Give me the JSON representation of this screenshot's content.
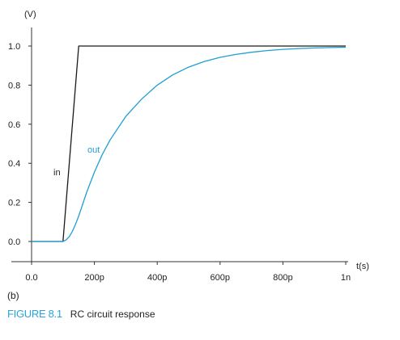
{
  "chart_data": {
    "type": "line",
    "y_unit": "(V)",
    "x_unit": "t(s)",
    "x_ticks": [
      {
        "value": 0,
        "label": "0.0"
      },
      {
        "value": 200,
        "label": "200p"
      },
      {
        "value": 400,
        "label": "400p"
      },
      {
        "value": 600,
        "label": "600p"
      },
      {
        "value": 800,
        "label": "800p"
      },
      {
        "value": 1000,
        "label": "1n"
      }
    ],
    "y_ticks": [
      {
        "value": 0.0,
        "label": "0.0"
      },
      {
        "value": 0.2,
        "label": "0.2"
      },
      {
        "value": 0.4,
        "label": "0.4"
      },
      {
        "value": 0.6,
        "label": "0.6"
      },
      {
        "value": 0.8,
        "label": "0.8"
      },
      {
        "value": 1.0,
        "label": "1.0"
      }
    ],
    "xlim": [
      0,
      1000
    ],
    "ylim": [
      0,
      1.0
    ],
    "grid": false,
    "series": [
      {
        "name": "in",
        "color": "#1a1a1a",
        "x": [
          0,
          100,
          150,
          1000
        ],
        "y": [
          0,
          0,
          1.0,
          1.0
        ]
      },
      {
        "name": "out",
        "color": "#1f9fd3",
        "x": [
          0,
          100,
          110,
          120,
          130,
          140,
          150,
          160,
          175,
          200,
          225,
          250,
          300,
          350,
          400,
          450,
          500,
          550,
          600,
          650,
          700,
          750,
          800,
          850,
          900,
          950,
          1000
        ],
        "y": [
          0,
          0,
          0.008,
          0.025,
          0.052,
          0.088,
          0.13,
          0.178,
          0.25,
          0.355,
          0.445,
          0.52,
          0.64,
          0.728,
          0.8,
          0.853,
          0.892,
          0.921,
          0.942,
          0.957,
          0.968,
          0.977,
          0.983,
          0.987,
          0.99,
          0.992,
          0.994
        ]
      }
    ]
  },
  "panel_label": "(b)",
  "caption": {
    "figure_label": "FIGURE 8.1",
    "text": "RC circuit response"
  },
  "colors": {
    "axis": "#333333",
    "in_trace": "#1a1a1a",
    "out_trace": "#1f9fd3",
    "caption_accent": "#29a3d8"
  }
}
